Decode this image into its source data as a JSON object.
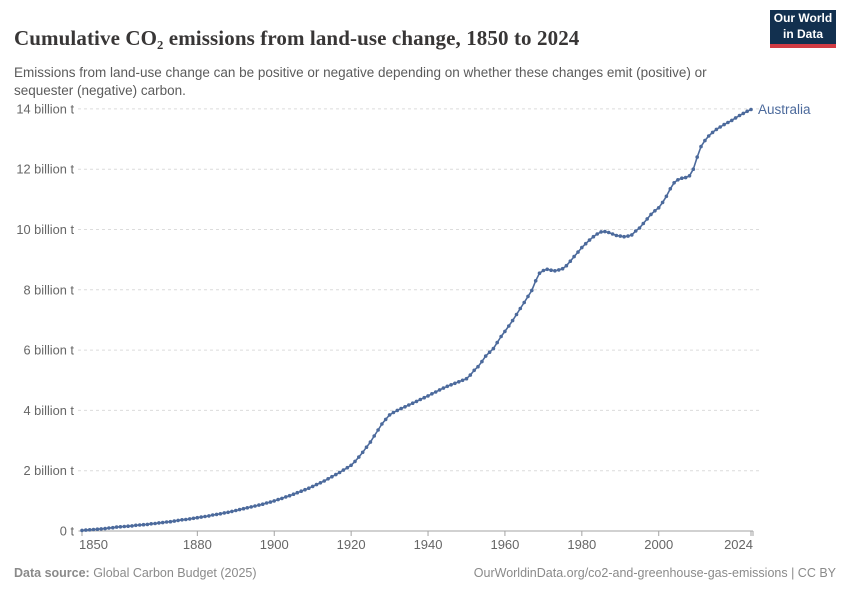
{
  "header": {
    "title": "Cumulative CO₂ emissions from land-use change, 1850 to 2024",
    "subtitle": "Emissions from land-use change can be positive or negative depending on whether these changes emit (positive) or sequester (negative) carbon.",
    "logo": {
      "line1": "Our World",
      "line2": "in Data"
    }
  },
  "footer": {
    "datasource_label": "Data source:",
    "datasource_value": " Global Carbon Budget (2025)",
    "link_text": "OurWorldinData.org/co2-and-greenhouse-gas-emissions | CC BY"
  },
  "colors": {
    "series_line": "#4c6a9c",
    "grid": "#dcdcdc",
    "axis": "#a3a3a3",
    "tick_label": "#666666",
    "title": "#383636",
    "subtitle": "#5b5b5b",
    "footer": "#8a8a8a",
    "logo_bg": "#12304f",
    "logo_red": "#d13b43"
  },
  "chart_data": {
    "type": "line",
    "title": "Cumulative CO₂ emissions from land-use change, 1850 to 2024",
    "unit": "billion t",
    "xlim": [
      1850,
      2024
    ],
    "ylim": [
      0,
      14
    ],
    "grid": "dashed-horizontal",
    "legend_position": "end-of-line-label",
    "x_ticks": [
      1850,
      1880,
      1900,
      1920,
      1940,
      1960,
      1980,
      2000,
      2024
    ],
    "y_ticks": [
      {
        "value": 0,
        "label": "0 t"
      },
      {
        "value": 2,
        "label": "2 billion t"
      },
      {
        "value": 4,
        "label": "4 billion t"
      },
      {
        "value": 6,
        "label": "6 billion t"
      },
      {
        "value": 8,
        "label": "8 billion t"
      },
      {
        "value": 10,
        "label": "10 billion t"
      },
      {
        "value": 12,
        "label": "12 billion t"
      },
      {
        "value": 14,
        "label": "14 billion t"
      }
    ],
    "entity_label": "Australia",
    "series": [
      {
        "name": "Australia",
        "start_year": 1850,
        "end_year": 2024,
        "values": [
          0.02,
          0.03,
          0.04,
          0.05,
          0.06,
          0.07,
          0.08,
          0.1,
          0.11,
          0.13,
          0.14,
          0.15,
          0.16,
          0.17,
          0.19,
          0.2,
          0.21,
          0.22,
          0.24,
          0.25,
          0.27,
          0.28,
          0.3,
          0.31,
          0.33,
          0.35,
          0.37,
          0.38,
          0.4,
          0.42,
          0.44,
          0.46,
          0.48,
          0.5,
          0.53,
          0.55,
          0.57,
          0.6,
          0.62,
          0.65,
          0.68,
          0.71,
          0.74,
          0.77,
          0.8,
          0.83,
          0.86,
          0.89,
          0.93,
          0.96,
          1.0,
          1.04,
          1.08,
          1.13,
          1.17,
          1.22,
          1.27,
          1.32,
          1.37,
          1.42,
          1.48,
          1.54,
          1.6,
          1.66,
          1.73,
          1.8,
          1.87,
          1.94,
          2.02,
          2.1,
          2.18,
          2.31,
          2.45,
          2.61,
          2.78,
          2.95,
          3.15,
          3.35,
          3.55,
          3.7,
          3.85,
          3.93,
          4.0,
          4.06,
          4.12,
          4.18,
          4.24,
          4.3,
          4.36,
          4.42,
          4.48,
          4.55,
          4.61,
          4.68,
          4.74,
          4.8,
          4.85,
          4.9,
          4.95,
          5.0,
          5.05,
          5.17,
          5.33,
          5.45,
          5.62,
          5.8,
          5.93,
          6.05,
          6.25,
          6.45,
          6.62,
          6.8,
          6.98,
          7.18,
          7.38,
          7.58,
          7.78,
          7.98,
          8.3,
          8.55,
          8.64,
          8.68,
          8.65,
          8.63,
          8.66,
          8.7,
          8.8,
          8.95,
          9.1,
          9.25,
          9.4,
          9.53,
          9.65,
          9.76,
          9.85,
          9.92,
          9.93,
          9.9,
          9.85,
          9.8,
          9.78,
          9.76,
          9.78,
          9.82,
          9.95,
          10.05,
          10.2,
          10.35,
          10.5,
          10.62,
          10.72,
          10.9,
          11.1,
          11.35,
          11.55,
          11.65,
          11.7,
          11.72,
          11.78,
          12.0,
          12.4,
          12.75,
          12.95,
          13.1,
          13.22,
          13.32,
          13.4,
          13.48,
          13.55,
          13.62,
          13.7,
          13.78,
          13.85,
          13.92,
          13.98
        ]
      }
    ]
  }
}
